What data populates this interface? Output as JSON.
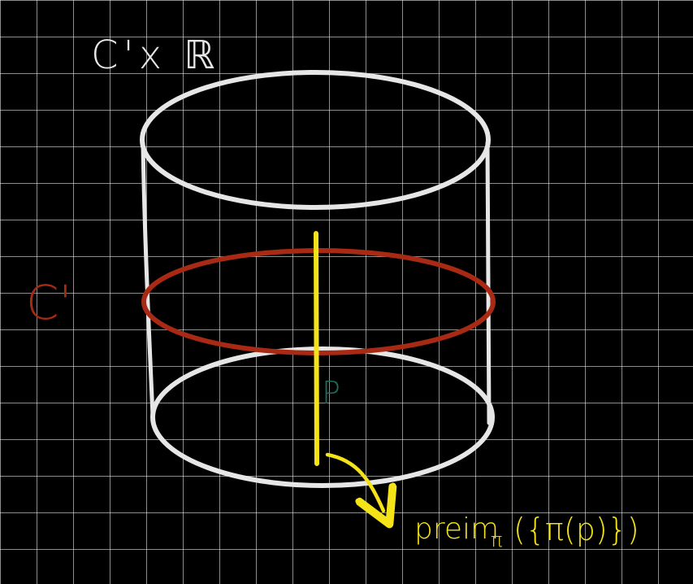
{
  "figure": {
    "title_label": "C'x ℝ",
    "circle_label": "C'",
    "point_label": "P",
    "preimage_label": "preim",
    "preimage_subscript": "π",
    "preimage_argument": "({π(p)})"
  },
  "colors": {
    "background": "#000000",
    "grid": "#bdbdbd",
    "cylinder": "#e6e6e6",
    "circle": "#a82a14",
    "fiber": "#f4e318",
    "point": "#1f6b5c",
    "annotation": "#f4e318"
  }
}
